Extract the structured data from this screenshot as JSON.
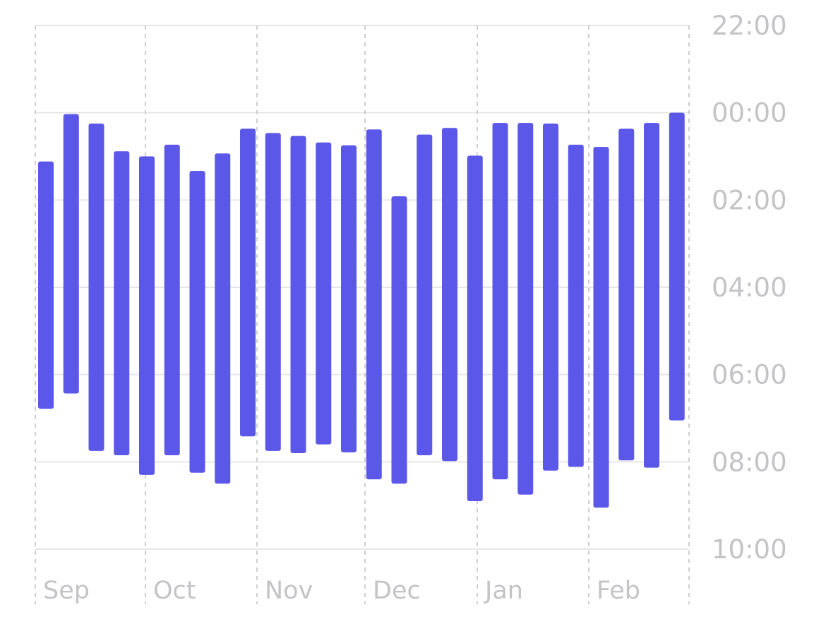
{
  "chart_data": {
    "type": "bar",
    "subtype": "floating-range",
    "title": "",
    "xlabel": "",
    "ylabel": "",
    "y_axis_side": "right",
    "y_axis_inverted": true,
    "y_ticks": [
      "22:00",
      "00:00",
      "02:00",
      "04:00",
      "06:00",
      "08:00",
      "10:00"
    ],
    "ylim_hours_after_22": [
      0,
      12
    ],
    "x_months": [
      "Sep",
      "Oct",
      "Nov",
      "Dec",
      "Jan",
      "Feb"
    ],
    "grid": true,
    "bar_color": "#5b57e8",
    "bars": [
      {
        "start": "01:07",
        "end": "06:47"
      },
      {
        "start": "00:02",
        "end": "06:26"
      },
      {
        "start": "00:15",
        "end": "07:45"
      },
      {
        "start": "00:53",
        "end": "07:51"
      },
      {
        "start": "01:00",
        "end": "08:18"
      },
      {
        "start": "00:44",
        "end": "07:51"
      },
      {
        "start": "01:20",
        "end": "08:15"
      },
      {
        "start": "00:56",
        "end": "08:30"
      },
      {
        "start": "00:22",
        "end": "07:25"
      },
      {
        "start": "00:28",
        "end": "07:45"
      },
      {
        "start": "00:32",
        "end": "07:48"
      },
      {
        "start": "00:41",
        "end": "07:36"
      },
      {
        "start": "00:45",
        "end": "07:47"
      },
      {
        "start": "00:23",
        "end": "08:24"
      },
      {
        "start": "01:55",
        "end": "08:30"
      },
      {
        "start": "00:30",
        "end": "07:51"
      },
      {
        "start": "00:21",
        "end": "07:59"
      },
      {
        "start": "00:59",
        "end": "08:54"
      },
      {
        "start": "00:14",
        "end": "08:24"
      },
      {
        "start": "00:14",
        "end": "08:45"
      },
      {
        "start": "00:15",
        "end": "08:12"
      },
      {
        "start": "00:44",
        "end": "08:07"
      },
      {
        "start": "00:47",
        "end": "09:03"
      },
      {
        "start": "00:22",
        "end": "07:58"
      },
      {
        "start": "00:14",
        "end": "08:08"
      },
      {
        "start": "00:00",
        "end": "07:03"
      }
    ]
  }
}
